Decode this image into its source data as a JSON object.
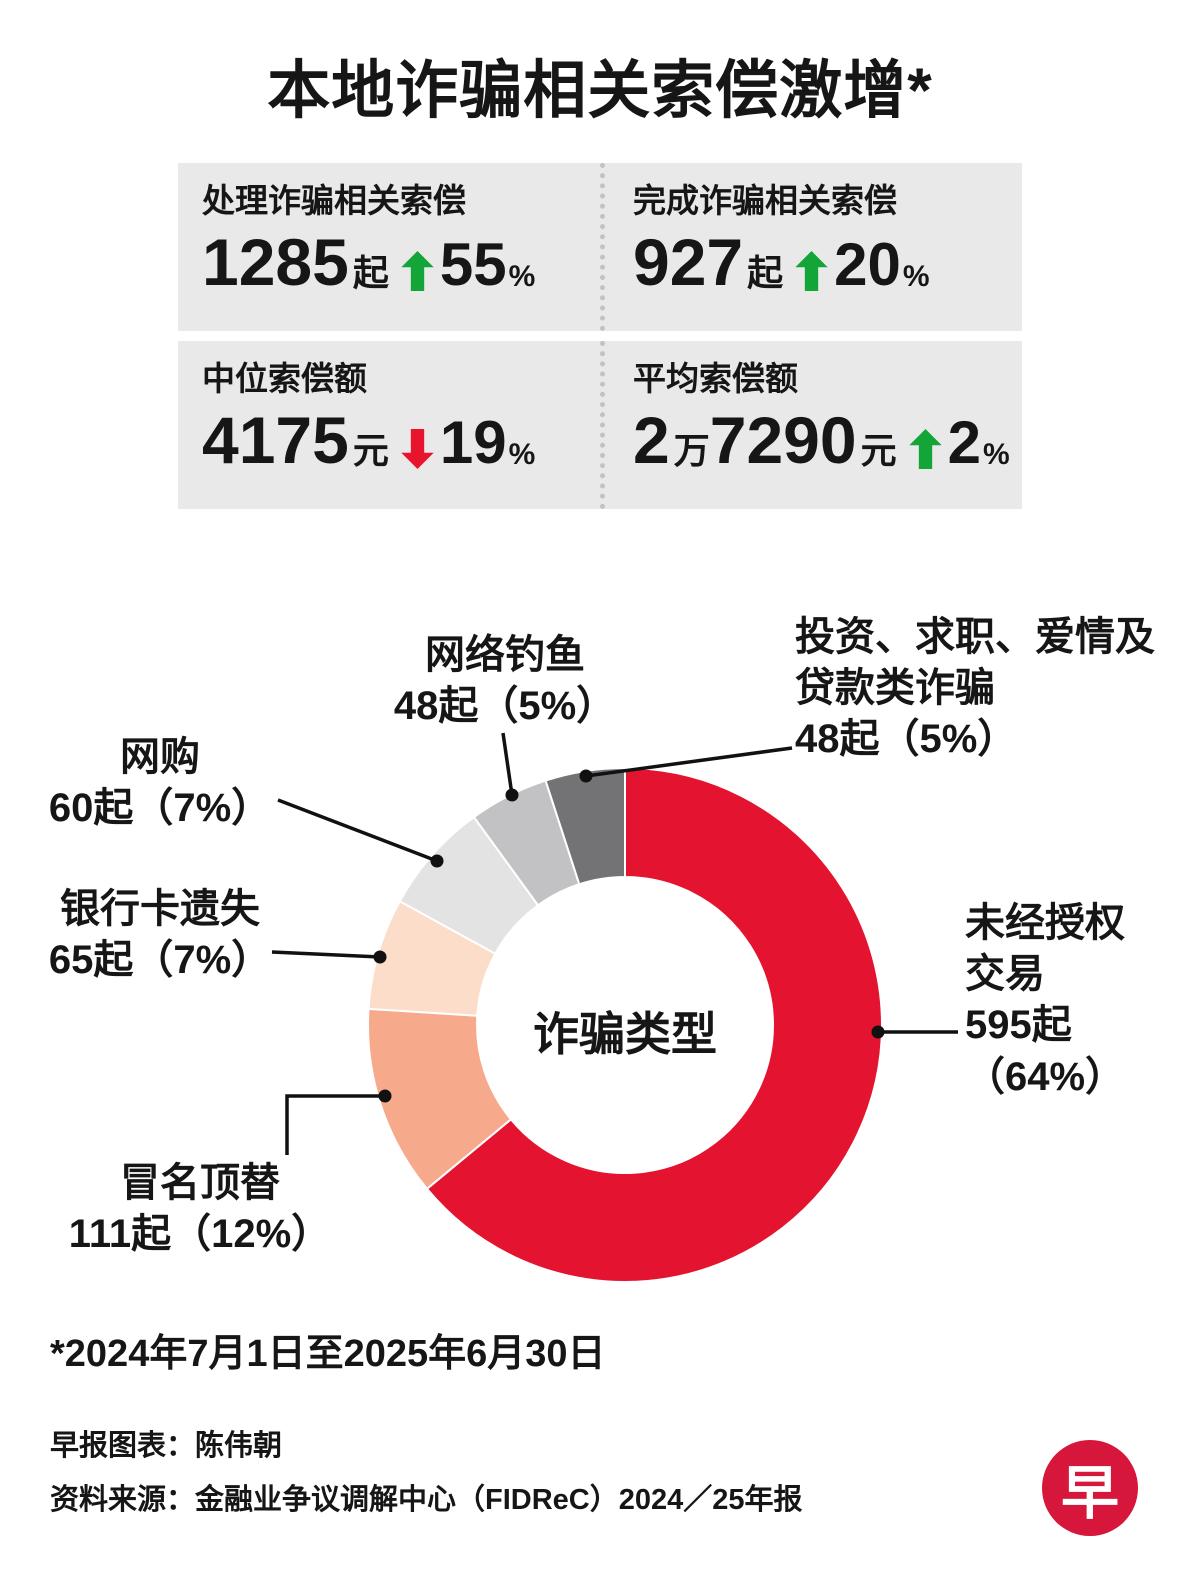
{
  "title": "本地诈骗相关索偿激增*",
  "stats": {
    "cells": [
      {
        "label": "处理诈骗相关索偿",
        "big1": "1285",
        "small1": "起",
        "big2": "",
        "small2": "",
        "direction": "up",
        "pct": "55",
        "pct_sign": "%"
      },
      {
        "label": "完成诈骗相关索偿",
        "big1": "927",
        "small1": "起",
        "big2": "",
        "small2": "",
        "direction": "up",
        "pct": "20",
        "pct_sign": "%"
      },
      {
        "label": "中位索偿额",
        "big1": "4175",
        "small1": "元",
        "big2": "",
        "small2": "",
        "direction": "down",
        "pct": "19",
        "pct_sign": "%"
      },
      {
        "label": "平均索偿额",
        "big1": "2",
        "small1": "万",
        "big2": "7290",
        "small2": "元",
        "direction": "up",
        "pct": "2",
        "pct_sign": "%"
      }
    ]
  },
  "colors": {
    "up": "#13a538",
    "down": "#e8132c",
    "panel_bg": "#e9e9e9",
    "logo_red": "#d6163a",
    "leader_line": "#111111"
  },
  "chart_data": {
    "type": "pie",
    "title": "诈骗类型",
    "center_label": "诈骗类型",
    "legend_position": "callout-labels",
    "segments": [
      {
        "name": "未经授权交易",
        "count": 595,
        "percent": 64,
        "value_text": "595起（64%）",
        "color": "#e4132f"
      },
      {
        "name": "冒名顶替",
        "count": 111,
        "percent": 12,
        "value_text": "111起（12%）",
        "color": "#f7a98b"
      },
      {
        "name": "银行卡遗失",
        "count": 65,
        "percent": 7,
        "value_text": "65起（7%）",
        "color": "#fcddca"
      },
      {
        "name": "网购",
        "count": 60,
        "percent": 7,
        "value_text": "60起（7%）",
        "color": "#e3e3e4"
      },
      {
        "name": "网络钓鱼",
        "count": 48,
        "percent": 5,
        "value_text": "48起（5%）",
        "color": "#c2c2c4"
      },
      {
        "name": "投资、求职、爱情及贷款类诈骗",
        "count": 48,
        "percent": 5,
        "value_text": "48起（5%）",
        "color": "#737376"
      }
    ]
  },
  "footnote": "*2024年7月1日至2025年6月30日",
  "credits": {
    "line1": "早报图表：陈伟朝",
    "line2": "资料来源：金融业争议调解中心（FIDReC）2024／25年报"
  },
  "logo": {
    "text": "早"
  }
}
